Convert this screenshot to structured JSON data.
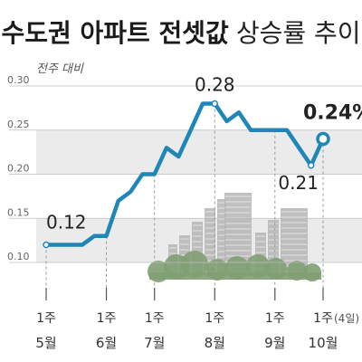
{
  "chart_data": {
    "type": "line",
    "title_bold": "수도권 아파트 전셋값",
    "title_light": "상승률 추이",
    "subtitle": "전주 대비",
    "ylim": [
      0.07,
      0.3
    ],
    "yticks": [
      "0.10",
      "0.15",
      "0.20",
      "0.25",
      "0.30"
    ],
    "grid": true,
    "series": [
      {
        "values": [
          0.12,
          0.12,
          0.12,
          0.12,
          0.13,
          0.13,
          0.17,
          0.18,
          0.2,
          0.2,
          0.23,
          0.22,
          0.25,
          0.28,
          0.28,
          0.26,
          0.27,
          0.25,
          0.25,
          0.25,
          0.25,
          0.23,
          0.21,
          0.24
        ],
        "color": "#1f87b8"
      }
    ],
    "x_labels": [
      {
        "index": 0,
        "week": "1주",
        "month": "5월"
      },
      {
        "index": 5,
        "week": "1주",
        "month": "6월"
      },
      {
        "index": 9,
        "week": "1주",
        "month": "7월"
      },
      {
        "index": 14,
        "week": "1주",
        "month": "8월"
      },
      {
        "index": 19,
        "week": "1주",
        "month": "9월"
      },
      {
        "index": 23,
        "week": "1주",
        "suffix": "(4일)",
        "month": "10월"
      }
    ],
    "annotations": [
      {
        "index": 0,
        "text": "0.12"
      },
      {
        "index": 14,
        "text": "0.28"
      },
      {
        "index": 22,
        "text": "0.21"
      },
      {
        "index": 23,
        "text": "0.24%"
      }
    ]
  },
  "colors": {
    "line": "#1f87b8",
    "band": "#ebebeb",
    "grid": "#bdbdbd",
    "tick_text": "#666666",
    "dashed": "#999999",
    "building": "#b5b5b5",
    "tree": "#7f9f72"
  }
}
